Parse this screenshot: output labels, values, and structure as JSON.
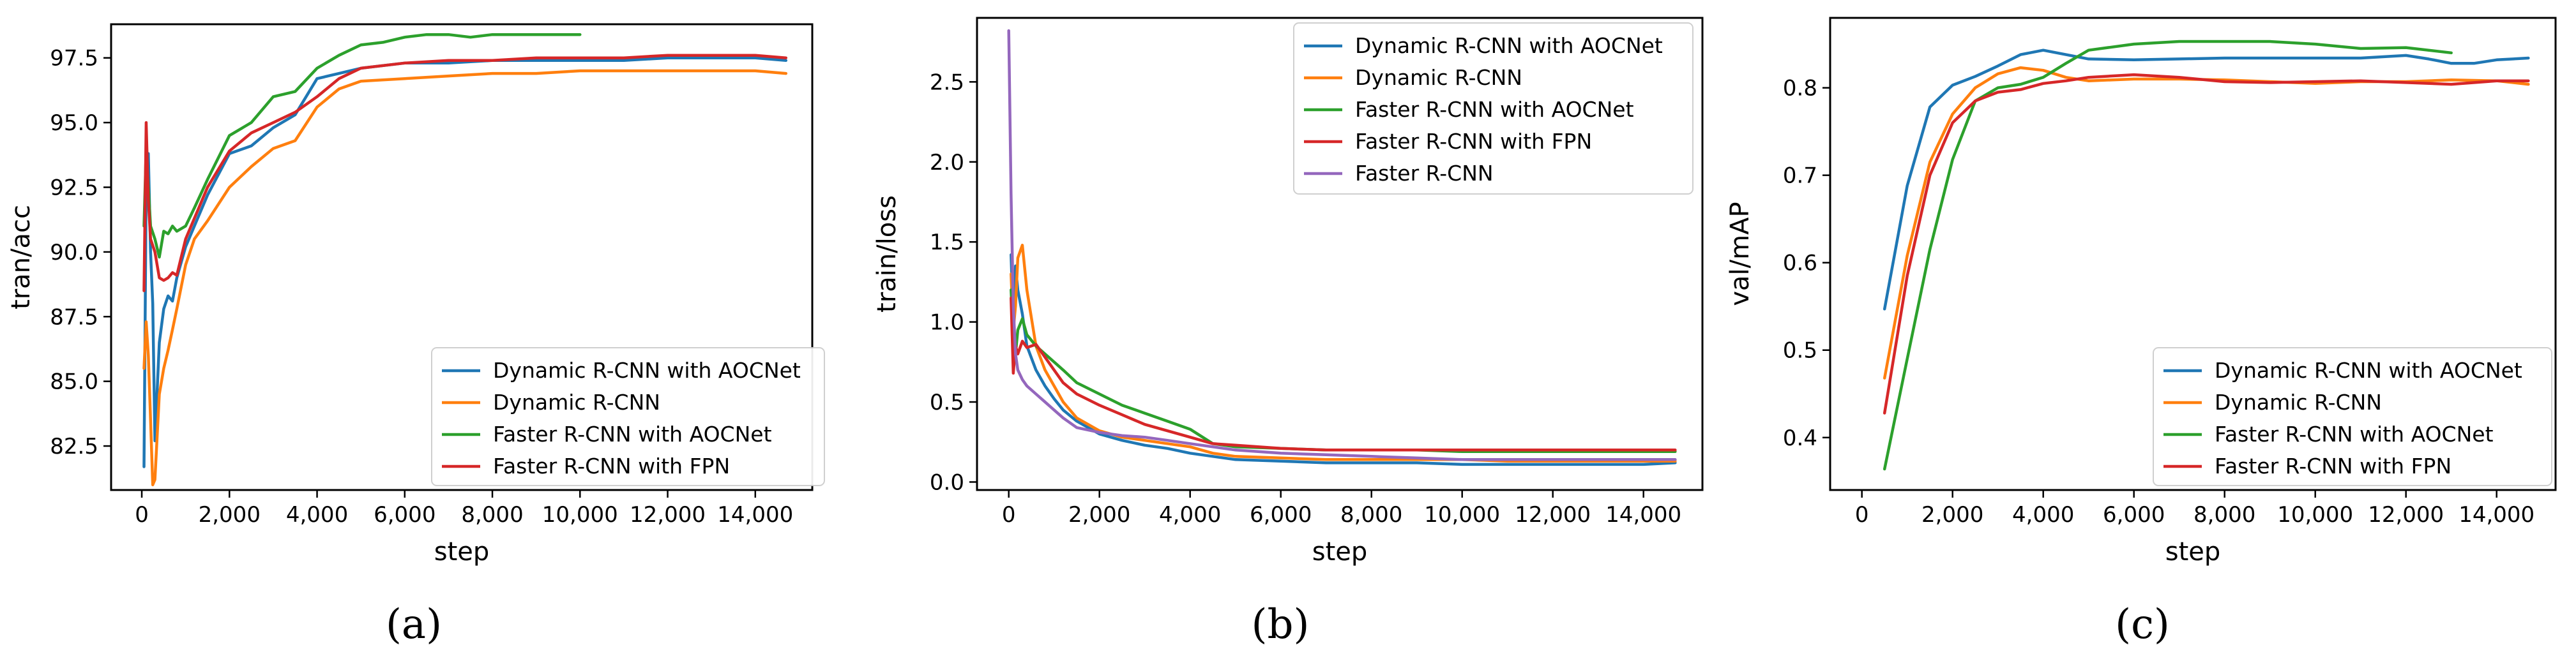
{
  "colors": {
    "blue": "#1f77b4",
    "orange": "#ff7f0e",
    "green": "#2ca02c",
    "red": "#d62728",
    "purple": "#9467bd"
  },
  "chart_data": [
    {
      "type": "line",
      "panel_label": "(a)",
      "title": "",
      "xlabel": "step",
      "ylabel": "tran/acc",
      "xlim": [
        -700,
        15300
      ],
      "ylim": [
        80.8,
        98.8
      ],
      "xticks": [
        0,
        2000,
        4000,
        6000,
        8000,
        10000,
        12000,
        14000
      ],
      "xtick_labels": [
        "0",
        "2,000",
        "4,000",
        "6,000",
        "8,000",
        "10,000",
        "12,000",
        "14,000"
      ],
      "yticks": [
        82.5,
        85.0,
        87.5,
        90.0,
        92.5,
        95.0,
        97.5
      ],
      "ytick_labels": [
        "82.5",
        "85.0",
        "87.5",
        "90.0",
        "92.5",
        "95.0",
        "97.5"
      ],
      "legend_position": "lower-right",
      "series": [
        {
          "name": "Dynamic R-CNN with AOCNet",
          "color": "#1f77b4",
          "x": [
            50,
            100,
            150,
            200,
            250,
            300,
            400,
            500,
            600,
            700,
            800,
            1000,
            1200,
            1500,
            2000,
            2500,
            3000,
            3500,
            4000,
            4500,
            5000,
            6000,
            7000,
            8000,
            9000,
            10000,
            11000,
            12000,
            13000,
            14000,
            14700
          ],
          "y": [
            81.7,
            92.5,
            93.8,
            90.0,
            88.0,
            82.7,
            86.5,
            87.8,
            88.3,
            88.1,
            89.0,
            90.2,
            91.0,
            92.2,
            93.8,
            94.1,
            94.8,
            95.3,
            96.7,
            96.9,
            97.1,
            97.3,
            97.3,
            97.4,
            97.4,
            97.4,
            97.4,
            97.5,
            97.5,
            97.5,
            97.4
          ]
        },
        {
          "name": "Dynamic R-CNN",
          "color": "#ff7f0e",
          "x": [
            50,
            100,
            150,
            200,
            250,
            300,
            400,
            500,
            600,
            700,
            800,
            1000,
            1200,
            1500,
            2000,
            2500,
            3000,
            3500,
            4000,
            4500,
            5000,
            6000,
            7000,
            8000,
            9000,
            10000,
            11000,
            12000,
            13000,
            14000,
            14700
          ],
          "y": [
            85.5,
            87.3,
            86.0,
            83.5,
            81.0,
            81.2,
            84.5,
            85.5,
            86.2,
            87.0,
            87.8,
            89.5,
            90.5,
            91.2,
            92.5,
            93.3,
            94.0,
            94.3,
            95.6,
            96.3,
            96.6,
            96.7,
            96.8,
            96.9,
            96.9,
            97.0,
            97.0,
            97.0,
            97.0,
            97.0,
            96.9
          ]
        },
        {
          "name": "Faster R-CNN with AOCNet",
          "color": "#2ca02c",
          "x": [
            50,
            100,
            150,
            200,
            300,
            400,
            500,
            600,
            700,
            800,
            1000,
            1200,
            1500,
            2000,
            2500,
            3000,
            3500,
            4000,
            4500,
            5000,
            5500,
            6000,
            6500,
            7000,
            7500,
            8000,
            8500,
            9000,
            9500,
            10000
          ],
          "y": [
            91.0,
            94.0,
            92.5,
            91.0,
            90.5,
            89.8,
            90.8,
            90.7,
            91.0,
            90.8,
            91.0,
            91.7,
            92.8,
            94.5,
            95.0,
            96.0,
            96.2,
            97.1,
            97.6,
            98.0,
            98.1,
            98.3,
            98.4,
            98.4,
            98.3,
            98.4,
            98.4,
            98.4,
            98.4,
            98.4
          ]
        },
        {
          "name": "Faster R-CNN with FPN",
          "color": "#d62728",
          "x": [
            50,
            100,
            150,
            200,
            300,
            400,
            500,
            600,
            700,
            800,
            1000,
            1200,
            1500,
            2000,
            2500,
            3000,
            3500,
            4000,
            4500,
            5000,
            6000,
            7000,
            8000,
            9000,
            10000,
            11000,
            12000,
            13000,
            14000,
            14700
          ],
          "y": [
            88.5,
            95.0,
            92.0,
            90.5,
            90.0,
            89.0,
            88.9,
            89.0,
            89.2,
            89.1,
            90.5,
            91.3,
            92.5,
            93.9,
            94.6,
            95.0,
            95.4,
            96.0,
            96.7,
            97.1,
            97.3,
            97.4,
            97.4,
            97.5,
            97.5,
            97.5,
            97.6,
            97.6,
            97.6,
            97.5
          ]
        }
      ]
    },
    {
      "type": "line",
      "panel_label": "(b)",
      "title": "",
      "xlabel": "step",
      "ylabel": "train/loss",
      "xlim": [
        -700,
        15300
      ],
      "ylim": [
        -0.05,
        2.9
      ],
      "xticks": [
        0,
        2000,
        4000,
        6000,
        8000,
        10000,
        12000,
        14000
      ],
      "xtick_labels": [
        "0",
        "2,000",
        "4,000",
        "6,000",
        "8,000",
        "10,000",
        "12,000",
        "14,000"
      ],
      "yticks": [
        0.0,
        0.5,
        1.0,
        1.5,
        2.0,
        2.5
      ],
      "ytick_labels": [
        "0.0",
        "0.5",
        "1.0",
        "1.5",
        "2.0",
        "2.5"
      ],
      "legend_position": "upper-right",
      "series": [
        {
          "name": "Dynamic R-CNN with AOCNet",
          "color": "#1f77b4",
          "x": [
            50,
            100,
            150,
            200,
            300,
            400,
            600,
            800,
            1000,
            1200,
            1500,
            2000,
            2500,
            3000,
            3500,
            4000,
            4500,
            5000,
            6000,
            7000,
            8000,
            9000,
            10000,
            11000,
            12000,
            13000,
            14000,
            14700
          ],
          "y": [
            1.42,
            1.0,
            1.35,
            1.2,
            1.05,
            0.85,
            0.7,
            0.6,
            0.52,
            0.45,
            0.38,
            0.3,
            0.26,
            0.23,
            0.21,
            0.18,
            0.16,
            0.14,
            0.13,
            0.12,
            0.12,
            0.12,
            0.11,
            0.11,
            0.11,
            0.11,
            0.11,
            0.12
          ]
        },
        {
          "name": "Dynamic R-CNN",
          "color": "#ff7f0e",
          "x": [
            50,
            100,
            150,
            200,
            300,
            400,
            600,
            800,
            1000,
            1200,
            1500,
            2000,
            2500,
            3000,
            3500,
            4000,
            4500,
            5000,
            6000,
            7000,
            8000,
            9000,
            10000,
            11000,
            12000,
            13000,
            14000,
            14700
          ],
          "y": [
            1.3,
            0.95,
            1.1,
            1.4,
            1.48,
            1.2,
            0.85,
            0.7,
            0.6,
            0.5,
            0.4,
            0.32,
            0.28,
            0.26,
            0.24,
            0.22,
            0.18,
            0.16,
            0.15,
            0.14,
            0.14,
            0.14,
            0.14,
            0.13,
            0.13,
            0.13,
            0.13,
            0.13
          ]
        },
        {
          "name": "Faster R-CNN with AOCNet",
          "color": "#2ca02c",
          "x": [
            50,
            100,
            150,
            200,
            300,
            400,
            600,
            800,
            1000,
            1200,
            1500,
            2000,
            2500,
            3000,
            3500,
            4000,
            4500,
            5000,
            6000,
            7000,
            8000,
            9000,
            10000,
            11000,
            12000,
            13000,
            14000,
            14700
          ],
          "y": [
            1.2,
            0.9,
            0.8,
            0.95,
            1.02,
            0.92,
            0.85,
            0.8,
            0.75,
            0.7,
            0.62,
            0.55,
            0.48,
            0.43,
            0.38,
            0.33,
            0.24,
            0.22,
            0.21,
            0.2,
            0.2,
            0.2,
            0.19,
            0.19,
            0.19,
            0.19,
            0.19,
            0.19
          ]
        },
        {
          "name": "Faster R-CNN with FPN",
          "color": "#d62728",
          "x": [
            50,
            100,
            150,
            200,
            300,
            400,
            600,
            800,
            1000,
            1200,
            1500,
            2000,
            2500,
            3000,
            3500,
            4000,
            4500,
            5000,
            6000,
            7000,
            8000,
            9000,
            10000,
            11000,
            12000,
            13000,
            14000,
            14700
          ],
          "y": [
            1.15,
            0.68,
            0.85,
            0.8,
            0.88,
            0.84,
            0.86,
            0.78,
            0.7,
            0.62,
            0.55,
            0.48,
            0.42,
            0.36,
            0.32,
            0.28,
            0.24,
            0.23,
            0.21,
            0.2,
            0.2,
            0.2,
            0.2,
            0.2,
            0.2,
            0.2,
            0.2,
            0.2
          ]
        },
        {
          "name": "Faster R-CNN",
          "color": "#9467bd",
          "x": [
            0,
            50,
            100,
            150,
            200,
            300,
            400,
            600,
            800,
            1000,
            1200,
            1500,
            2000,
            2500,
            3000,
            3500,
            4000,
            4500,
            5000,
            6000,
            7000,
            8000,
            9000,
            10000,
            11000,
            12000,
            13000,
            14000,
            14700
          ],
          "y": [
            2.82,
            1.8,
            1.1,
            0.8,
            0.7,
            0.64,
            0.6,
            0.55,
            0.5,
            0.45,
            0.4,
            0.34,
            0.31,
            0.29,
            0.28,
            0.26,
            0.24,
            0.22,
            0.2,
            0.18,
            0.17,
            0.16,
            0.15,
            0.14,
            0.14,
            0.14,
            0.14,
            0.14,
            0.14
          ]
        }
      ]
    },
    {
      "type": "line",
      "panel_label": "(c)",
      "title": "",
      "xlabel": "step",
      "ylabel": "val/mAP",
      "xlim": [
        -700,
        15300
      ],
      "ylim": [
        0.34,
        0.88
      ],
      "xticks": [
        0,
        2000,
        4000,
        6000,
        8000,
        10000,
        12000,
        14000
      ],
      "xtick_labels": [
        "0",
        "2,000",
        "4,000",
        "6,000",
        "8,000",
        "10,000",
        "12,000",
        "14,000"
      ],
      "yticks": [
        0.4,
        0.5,
        0.6,
        0.7,
        0.8
      ],
      "ytick_labels": [
        "0.4",
        "0.5",
        "0.6",
        "0.7",
        "0.8"
      ],
      "legend_position": "lower-right",
      "series": [
        {
          "name": "Dynamic R-CNN with AOCNet",
          "color": "#1f77b4",
          "x": [
            500,
            1000,
            1500,
            2000,
            2500,
            3000,
            3500,
            4000,
            4500,
            5000,
            6000,
            7000,
            8000,
            9000,
            10000,
            11000,
            12000,
            12500,
            13000,
            13500,
            14000,
            14700
          ],
          "y": [
            0.547,
            0.688,
            0.778,
            0.803,
            0.813,
            0.825,
            0.838,
            0.843,
            0.838,
            0.833,
            0.832,
            0.833,
            0.834,
            0.834,
            0.834,
            0.834,
            0.837,
            0.833,
            0.828,
            0.828,
            0.832,
            0.834
          ]
        },
        {
          "name": "Dynamic R-CNN",
          "color": "#ff7f0e",
          "x": [
            500,
            1000,
            1500,
            2000,
            2500,
            3000,
            3500,
            4000,
            4500,
            5000,
            6000,
            7000,
            8000,
            9000,
            10000,
            11000,
            12000,
            13000,
            14000,
            14700
          ],
          "y": [
            0.468,
            0.608,
            0.715,
            0.77,
            0.8,
            0.816,
            0.823,
            0.82,
            0.812,
            0.808,
            0.81,
            0.81,
            0.809,
            0.807,
            0.805,
            0.807,
            0.807,
            0.809,
            0.808,
            0.804
          ]
        },
        {
          "name": "Faster R-CNN with AOCNet",
          "color": "#2ca02c",
          "x": [
            500,
            1000,
            1500,
            2000,
            2500,
            3000,
            3500,
            4000,
            4500,
            5000,
            6000,
            7000,
            8000,
            9000,
            10000,
            11000,
            12000,
            13000
          ],
          "y": [
            0.364,
            0.49,
            0.615,
            0.718,
            0.785,
            0.8,
            0.804,
            0.812,
            0.828,
            0.843,
            0.85,
            0.853,
            0.853,
            0.853,
            0.85,
            0.845,
            0.846,
            0.84
          ]
        },
        {
          "name": "Faster R-CNN with FPN",
          "color": "#d62728",
          "x": [
            500,
            1000,
            1500,
            2000,
            2500,
            3000,
            3500,
            4000,
            4500,
            5000,
            6000,
            7000,
            8000,
            9000,
            10000,
            11000,
            12000,
            13000,
            14000,
            14700
          ],
          "y": [
            0.428,
            0.585,
            0.7,
            0.76,
            0.785,
            0.795,
            0.798,
            0.805,
            0.808,
            0.812,
            0.815,
            0.812,
            0.807,
            0.806,
            0.807,
            0.808,
            0.806,
            0.804,
            0.808,
            0.808
          ]
        }
      ]
    }
  ]
}
